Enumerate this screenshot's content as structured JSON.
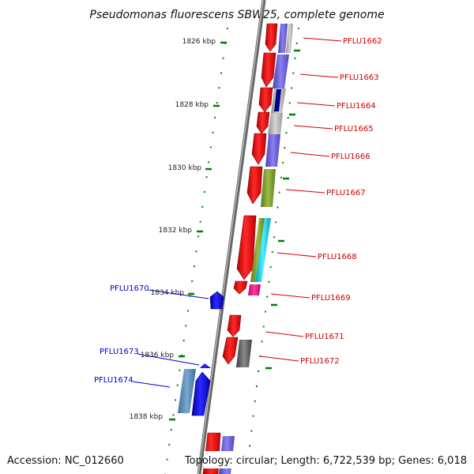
{
  "title": "Pseudomonas fluorescens SBW25, complete genome",
  "footer": {
    "accession": "Accession: NC_012660",
    "summary": "Topology: circular; Length: 6,722,539 bp; Genes: 6,018"
  },
  "scale": {
    "ticks": [
      {
        "label": "1826 kbp"
      },
      {
        "label": "1828 kbp"
      },
      {
        "label": "1830 kbp"
      },
      {
        "label": "1832 kbp"
      },
      {
        "label": "1834 kbp"
      },
      {
        "label": "1836 kbp"
      },
      {
        "label": "1838 kbp"
      }
    ]
  },
  "genes": {
    "forward": [
      {
        "label": "PFLU1662"
      },
      {
        "label": "PFLU1663"
      },
      {
        "label": "PFLU1664"
      },
      {
        "label": "PFLU1665"
      },
      {
        "label": "PFLU1666"
      },
      {
        "label": "PFLU1667"
      },
      {
        "label": "PFLU1668"
      },
      {
        "label": "PFLU1669"
      },
      {
        "label": "PFLU1671"
      },
      {
        "label": "PFLU1672"
      }
    ],
    "reverse": [
      {
        "label": "PFLU1670"
      },
      {
        "label": "PFLU1673"
      },
      {
        "label": "PFLU1674"
      }
    ]
  },
  "colors": {
    "forward_label": "#d00000",
    "reverse_label": "#0000c8",
    "cds_red": "#ff1010",
    "cds_blue": "#1010ff",
    "backbone": "#888888",
    "scale_dots": "#008000"
  }
}
